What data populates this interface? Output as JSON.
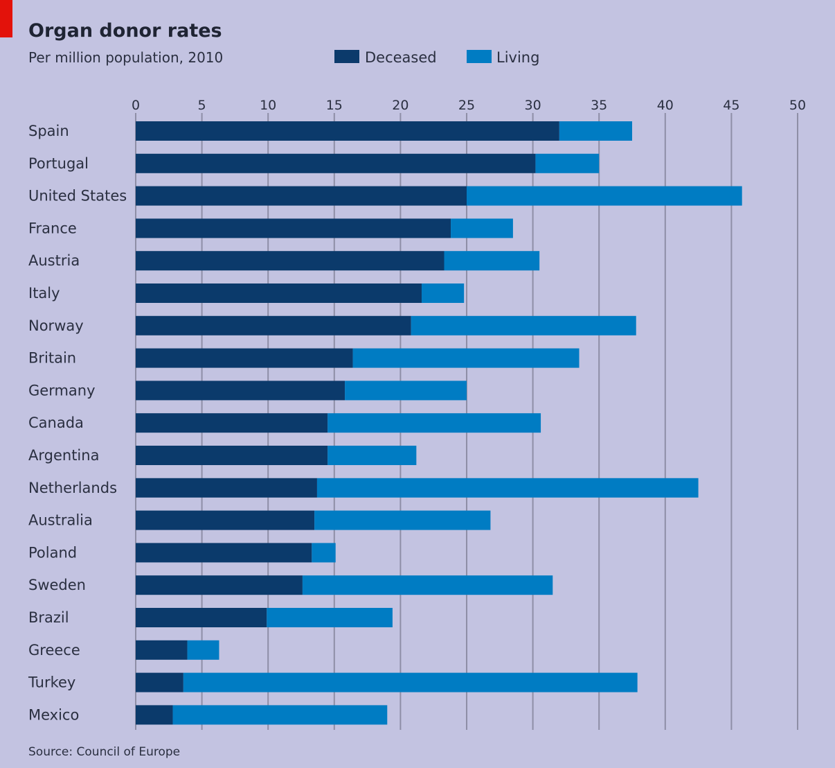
{
  "chart_data": {
    "type": "bar",
    "orientation": "horizontal",
    "stacked": true,
    "title": "Organ donor rates",
    "subtitle": "Per million population, 2010",
    "source": "Source: Council of Europe",
    "xlim": [
      0,
      50
    ],
    "ticks": [
      "0",
      "5",
      "10",
      "15",
      "20",
      "25",
      "30",
      "35",
      "40",
      "45",
      "50"
    ],
    "tick_values": [
      0,
      5,
      10,
      15,
      20,
      25,
      30,
      35,
      40,
      45,
      50
    ],
    "grid": true,
    "legend_position": "top",
    "categories": [
      "Spain",
      "Portugal",
      "United States",
      "France",
      "Austria",
      "Italy",
      "Norway",
      "Britain",
      "Germany",
      "Canada",
      "Argentina",
      "Netherlands",
      "Australia",
      "Poland",
      "Sweden",
      "Brazil",
      "Greece",
      "Turkey",
      "Mexico"
    ],
    "series": [
      {
        "name": "Deceased",
        "color": "#0b3a6b",
        "values": [
          32.0,
          30.2,
          25.0,
          23.8,
          23.3,
          21.6,
          20.8,
          16.4,
          15.8,
          14.5,
          14.5,
          13.7,
          13.5,
          13.3,
          12.6,
          9.9,
          3.9,
          3.6,
          2.8
        ]
      },
      {
        "name": "Living",
        "color": "#007cc3",
        "values": [
          5.5,
          4.8,
          20.8,
          4.7,
          7.2,
          3.2,
          17.0,
          17.1,
          9.2,
          16.1,
          6.7,
          28.8,
          13.3,
          1.8,
          18.9,
          9.5,
          2.4,
          34.3,
          16.2
        ]
      }
    ]
  }
}
